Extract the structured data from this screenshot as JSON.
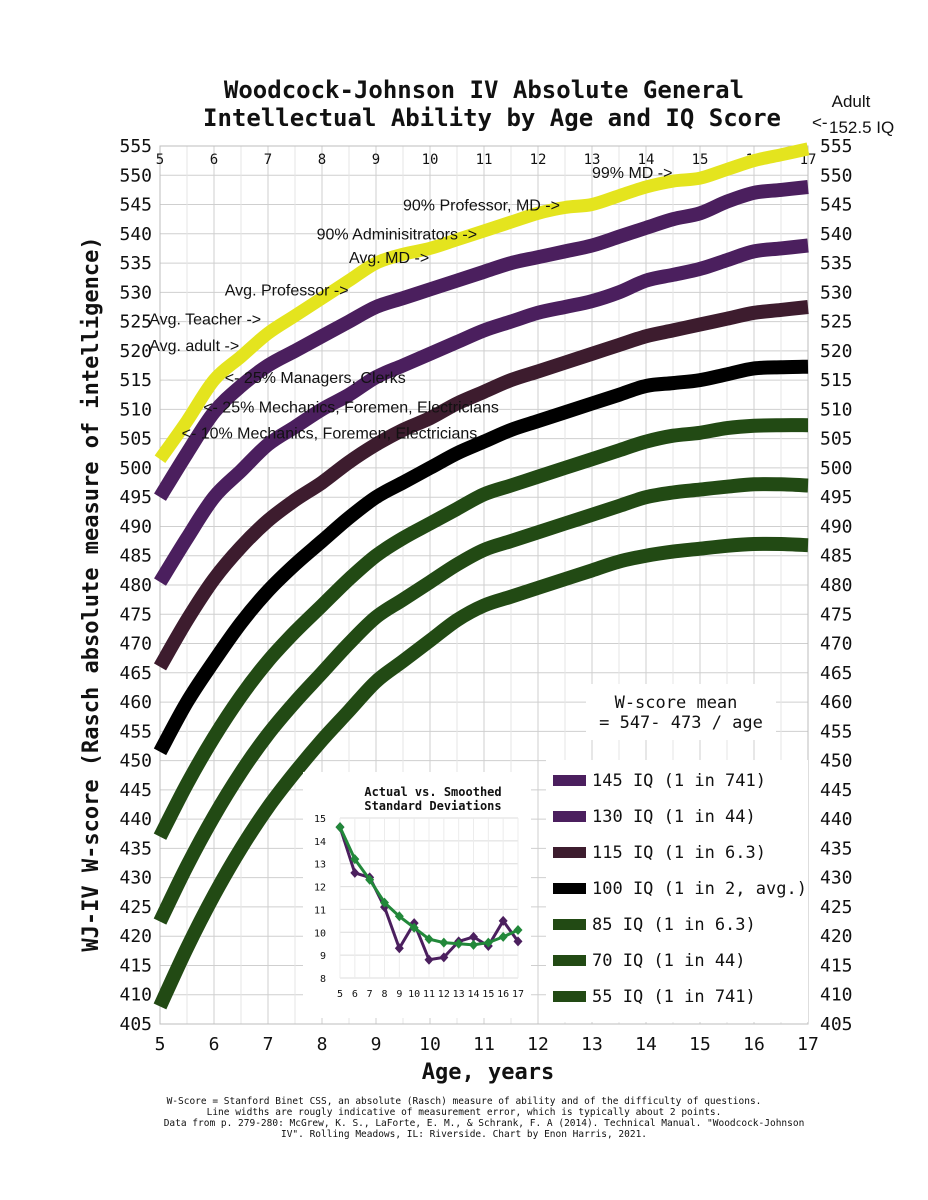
{
  "chart_data": {
    "type": "line",
    "title_lines": [
      "Woodcock-Johnson IV Absolute General",
      "Intellectual Ability by Age and IQ Score"
    ],
    "xlabel": "Age, years",
    "ylabel": "WJ-IV W-score (Rasch absolute measure of intelligence)",
    "xlim": [
      5,
      17
    ],
    "ylim": [
      405,
      555
    ],
    "x_ticks": [
      5,
      6,
      7,
      8,
      9,
      10,
      11,
      12,
      13,
      14,
      15,
      16,
      17
    ],
    "y_ticks": [
      405,
      410,
      415,
      420,
      425,
      430,
      435,
      440,
      445,
      450,
      455,
      460,
      465,
      470,
      475,
      480,
      485,
      490,
      495,
      500,
      505,
      510,
      515,
      520,
      525,
      530,
      535,
      540,
      545,
      550,
      555
    ],
    "grid": true,
    "x": [
      5,
      5.5,
      6,
      6.5,
      7,
      7.5,
      8,
      8.5,
      9,
      9.5,
      10,
      10.5,
      11,
      11.5,
      12,
      12.5,
      13,
      13.5,
      14,
      14.5,
      15,
      15.5,
      16,
      16.5,
      17
    ],
    "series": [
      {
        "name": "152.5 IQ",
        "color": "#e4e41e",
        "width": 13,
        "x_start": 5,
        "values": [
          501.5,
          508,
          515,
          519,
          523,
          526,
          529,
          532,
          535,
          536.5,
          537.5,
          539,
          540.5,
          542,
          543.5,
          544.5,
          545,
          546.5,
          548,
          549,
          549.5,
          551,
          552.5,
          553.5,
          554.5
        ]
      },
      {
        "name": "145 IQ (1 in 741)",
        "color": "#4b1f5e",
        "width": 14,
        "values": [
          495,
          502.5,
          509.5,
          514,
          517.5,
          520,
          522.5,
          525,
          527.5,
          529,
          530.5,
          532,
          533.5,
          535,
          536,
          537,
          538,
          539.5,
          541,
          542.5,
          543.5,
          545.5,
          547,
          547.5,
          548
        ]
      },
      {
        "name": "130 IQ (1 in 44)",
        "color": "#4b1f5e",
        "width": 14,
        "values": [
          480.5,
          488,
          495,
          499.5,
          504,
          507,
          510,
          512.5,
          515.5,
          517.5,
          519.5,
          521.5,
          523.5,
          525,
          526.5,
          527.5,
          528.5,
          530,
          532,
          533,
          534,
          535.5,
          537,
          537.5,
          538
        ]
      },
      {
        "name": "115 IQ (1 in 6.3)",
        "color": "#3d1c2e",
        "width": 14,
        "values": [
          466,
          474,
          481,
          486.5,
          491,
          494.5,
          497.5,
          501,
          504,
          506.5,
          508.5,
          511,
          513,
          515,
          516.5,
          518,
          519.5,
          521,
          522.5,
          523.5,
          524.5,
          525.5,
          526.5,
          527,
          527.5
        ]
      },
      {
        "name": "100 IQ (1 in 2, avg.)",
        "color": "#000000",
        "width": 14,
        "values": [
          451.5,
          460,
          467,
          473.5,
          479,
          483.5,
          487.5,
          491.5,
          495,
          497.5,
          500,
          502.5,
          504.5,
          506.5,
          508,
          509.5,
          511,
          512.5,
          514,
          514.5,
          515,
          516,
          517,
          517.2,
          517.3
        ]
      },
      {
        "name": "85 IQ (1 in 6.3)",
        "color": "#224a14",
        "width": 14,
        "values": [
          437,
          446,
          454,
          461,
          467,
          472,
          476.5,
          481,
          485,
          488,
          490.5,
          493,
          495.5,
          497,
          498.5,
          500,
          501.5,
          503,
          504.5,
          505.5,
          506,
          506.8,
          507.2,
          507.3,
          507.3
        ]
      },
      {
        "name": "70 IQ  (1 in 44)",
        "color": "#224a14",
        "width": 14,
        "values": [
          422.5,
          432,
          440.5,
          448,
          454.5,
          460,
          465,
          470,
          474.5,
          477.5,
          480.5,
          483.5,
          486,
          487.5,
          489,
          490.5,
          492,
          493.5,
          495,
          495.8,
          496.3,
          496.8,
          497.2,
          497.2,
          497
        ]
      },
      {
        "name": "55 IQ (1 in 741)",
        "color": "#224a14",
        "width": 14,
        "values": [
          408,
          418,
          427,
          435,
          442,
          448,
          453.5,
          458.5,
          463.5,
          467,
          470.5,
          474,
          476.5,
          478,
          479.5,
          481,
          482.5,
          484,
          485,
          485.7,
          486.2,
          486.7,
          487,
          487,
          486.8
        ]
      }
    ],
    "legend_title": [
      "W-score mean",
      "= 547- 473 / age"
    ],
    "legend_title_line1": "W-score mean",
    "legend_title_line2": "= 547- 473 / age",
    "legend_placement": "bottom-right",
    "right_axis_extra": {
      "label_line1": "Adult",
      "label_line2": "152.5 IQ",
      "arrow": "<-"
    },
    "annotations": [
      {
        "text": "99% MD ->",
        "x": 13,
        "y": 549.5
      },
      {
        "text": "90% Professor, MD ->",
        "x": 9.5,
        "y": 544
      },
      {
        "text": "90% Adminisitrators ->",
        "x": 7.9,
        "y": 539
      },
      {
        "text": "Avg. MD ->",
        "x": 8.5,
        "y": 535
      },
      {
        "text": "Avg. Professor ->",
        "x": 6.2,
        "y": 529.5
      },
      {
        "text": "Avg. Teacher ->",
        "x": 4.8,
        "y": 524.5
      },
      {
        "text": "Avg. adult ->",
        "x": 4.8,
        "y": 520
      },
      {
        "text": "<- 25% Managers, Clerks",
        "x": 6.2,
        "y": 514.5
      },
      {
        "text": "<- 25% Mechanics, Foremen, Electricians",
        "x": 5.8,
        "y": 509.5
      },
      {
        "text": "<- 10% Mechanics, Foremen, Electricians",
        "x": 5.4,
        "y": 505
      }
    ],
    "inset": {
      "type": "line",
      "title_lines": [
        "Actual vs. Smoothed",
        "Standard Deviations"
      ],
      "x_tick_labels": [
        "5",
        "6",
        "7",
        "8",
        "9",
        "10",
        "11",
        "12",
        "13",
        "14",
        "15",
        "16",
        "17"
      ],
      "ylim": [
        8,
        15
      ],
      "y_ticks": [
        8,
        9,
        10,
        11,
        12,
        13,
        14,
        15
      ],
      "series": [
        {
          "name": "Actual",
          "color": "#4b1f5e",
          "values": [
            14.6,
            12.6,
            12.4,
            11.1,
            9.3,
            10.4,
            8.8,
            8.9,
            9.6,
            9.8,
            9.4,
            10.5,
            9.6
          ]
        },
        {
          "name": "Smoothed",
          "color": "#22883a",
          "values": [
            14.6,
            13.2,
            12.3,
            11.3,
            10.7,
            10.2,
            9.7,
            9.55,
            9.5,
            9.45,
            9.55,
            9.8,
            10.1
          ]
        }
      ]
    }
  },
  "footnote": {
    "line1": "W-Score  = Stanford Binet CSS, an absolute (Rasch) measure of ability and of  the difficulty of questions.",
    "line2": "Line widths are rougly indicative of measurement error, which is typically about 2 points.",
    "line3": "Data from p. 279-280: McGrew, K. S., LaForte, E. M., & Schrank, F. A (2014). Technical Manual. \"Woodcock-Johnson",
    "line4": "IV\". Rolling Meadows, IL: Riverside. Chart by Enon Harris, 2021."
  }
}
